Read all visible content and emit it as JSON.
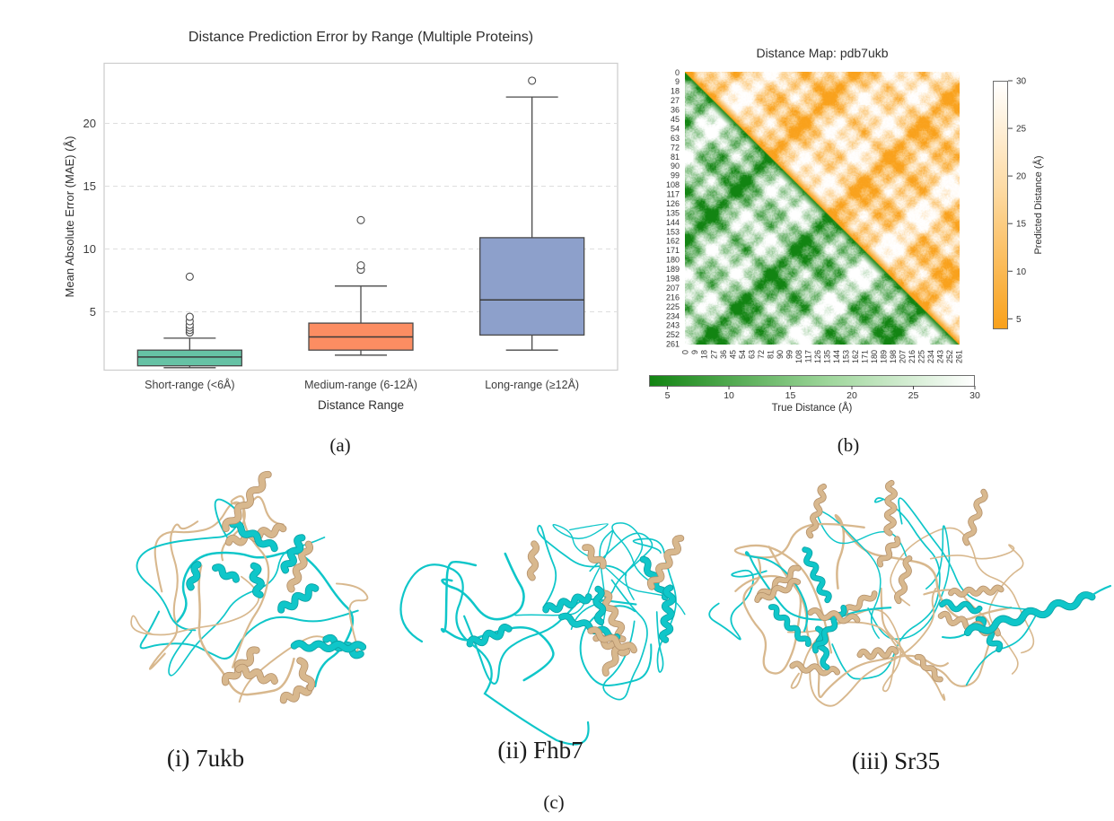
{
  "captions": {
    "a": "(a)",
    "b": "(b)",
    "c": "(c)"
  },
  "chart_data": [
    {
      "type": "box",
      "title": "Distance Prediction Error by Range (Multiple Proteins)",
      "xlabel": "Distance Range",
      "ylabel": "Mean Absolute Error (MAE) (Å)",
      "yticks": [
        5,
        10,
        15,
        20
      ],
      "ylim": [
        0.35,
        24.8
      ],
      "grid": "dashed-horizontal",
      "legend": "none",
      "categories": [
        "Short-range (<6Å)",
        "Medium-range (6-12Å)",
        "Long-range (≥12Å)"
      ],
      "box_colors": [
        "#66c2a5",
        "#fc8d62",
        "#8da0cb"
      ],
      "series": [
        {
          "name": "Short-range (<6Å)",
          "whislo": 0.55,
          "q1": 0.7,
          "med": 1.4,
          "q3": 1.95,
          "whishi": 2.9,
          "outliers": [
            3.35,
            3.55,
            3.75,
            3.95,
            4.25,
            4.6,
            7.8
          ]
        },
        {
          "name": "Medium-range (6-12Å)",
          "whislo": 1.55,
          "q1": 1.95,
          "med": 3.0,
          "q3": 4.1,
          "whishi": 7.05,
          "outliers": [
            8.35,
            8.7,
            12.3
          ]
        },
        {
          "name": "Long-range (≥12Å)",
          "whislo": 1.95,
          "q1": 3.15,
          "med": 5.95,
          "q3": 10.9,
          "whishi": 22.1,
          "outliers": [
            23.4
          ]
        }
      ]
    },
    {
      "type": "heatmap",
      "title": "Distance Map: pdb7ukb",
      "n_residues": 262,
      "residue_ticks": [
        0,
        9,
        18,
        27,
        36,
        45,
        54,
        63,
        72,
        81,
        90,
        99,
        108,
        117,
        126,
        135,
        144,
        153,
        162,
        171,
        180,
        189,
        198,
        207,
        216,
        225,
        234,
        243,
        252,
        261
      ],
      "lower_triangle": {
        "label": "True Distance (Å)",
        "colormap": "green-to-white",
        "dark_color": "#128412"
      },
      "upper_triangle": {
        "label": "Predicted Distance (Å)",
        "colormap": "orange-to-white",
        "dark_color": "#f9a11b"
      },
      "colorbar_ticks": [
        5,
        10,
        15,
        20,
        25,
        30
      ],
      "vmin": 4,
      "vmax": 30
    }
  ],
  "proteins": {
    "items": [
      {
        "label": "(i) 7ukb"
      },
      {
        "label": "(ii) Fhb7"
      },
      {
        "label": "(iii) Sr35"
      }
    ],
    "colors": {
      "predicted_ribbon": "#0fc6c9",
      "true_ribbon": "#d8b88e"
    }
  }
}
